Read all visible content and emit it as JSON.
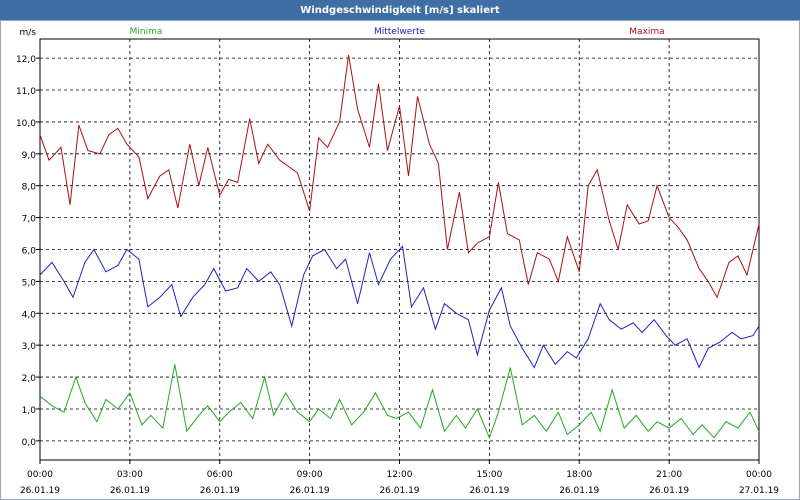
{
  "window": {
    "title": "Windgeschwindigkeit [m/s] skaliert"
  },
  "chart_data": {
    "type": "line",
    "title": "Windgeschwindigkeit [m/s] skaliert",
    "ylabel": "m/s",
    "ylim": [
      -0.6,
      12.6
    ],
    "xlim": [
      0,
      24
    ],
    "grid": true,
    "y_ticks": [
      "0,0",
      "1,0",
      "2,0",
      "3,0",
      "4,0",
      "5,0",
      "6,0",
      "7,0",
      "8,0",
      "9,0",
      "10,0",
      "11,0",
      "12,0"
    ],
    "x_ticks": [
      {
        "time": "00:00",
        "date": "26.01.19"
      },
      {
        "time": "03:00",
        "date": "26.01.19"
      },
      {
        "time": "06:00",
        "date": "26.01.19"
      },
      {
        "time": "09:00",
        "date": "26.01.19"
      },
      {
        "time": "12:00",
        "date": "26.01.19"
      },
      {
        "time": "15:00",
        "date": "26.01.19"
      },
      {
        "time": "18:00",
        "date": "26.01.19"
      },
      {
        "time": "21:00",
        "date": "26.01.19"
      },
      {
        "time": "00:00",
        "date": "27.01.19"
      }
    ],
    "series": [
      {
        "name": "Minima",
        "color": "#22aa22",
        "legend_pos": "left",
        "x": [
          0.0,
          0.4,
          0.8,
          1.2,
          1.5,
          1.9,
          2.2,
          2.6,
          3.0,
          3.4,
          3.7,
          4.1,
          4.5,
          4.9,
          5.3,
          5.6,
          6.0,
          6.3,
          6.7,
          7.1,
          7.5,
          7.8,
          8.2,
          8.6,
          9.0,
          9.3,
          9.7,
          10.0,
          10.4,
          10.8,
          11.2,
          11.6,
          11.9,
          12.3,
          12.7,
          13.1,
          13.5,
          13.9,
          14.2,
          14.6,
          15.0,
          15.3,
          15.7,
          16.1,
          16.5,
          16.9,
          17.3,
          17.6,
          18.0,
          18.4,
          18.7,
          19.1,
          19.5,
          19.9,
          20.3,
          20.6,
          21.0,
          21.4,
          21.8,
          22.1,
          22.5,
          22.9,
          23.3,
          23.7,
          24.0
        ],
        "y": [
          1.4,
          1.1,
          0.9,
          2.0,
          1.2,
          0.6,
          1.3,
          1.0,
          1.5,
          0.5,
          0.8,
          0.4,
          2.4,
          0.3,
          0.8,
          1.1,
          0.6,
          0.9,
          1.2,
          0.7,
          2.0,
          0.8,
          1.5,
          0.9,
          0.6,
          1.0,
          0.7,
          1.3,
          0.5,
          0.9,
          1.5,
          0.8,
          0.7,
          0.9,
          0.4,
          1.6,
          0.3,
          0.8,
          0.4,
          1.0,
          0.1,
          0.9,
          2.3,
          0.5,
          0.8,
          0.3,
          0.9,
          0.2,
          0.5,
          0.9,
          0.3,
          1.6,
          0.4,
          0.8,
          0.3,
          0.6,
          0.4,
          0.7,
          0.2,
          0.5,
          0.1,
          0.6,
          0.4,
          0.9,
          0.3
        ]
      },
      {
        "name": "Mittelwerte",
        "color": "#2222bb",
        "legend_pos": "center",
        "x": [
          0.0,
          0.4,
          0.8,
          1.1,
          1.5,
          1.8,
          2.2,
          2.6,
          2.9,
          3.3,
          3.6,
          4.0,
          4.4,
          4.7,
          5.1,
          5.5,
          5.8,
          6.2,
          6.6,
          6.9,
          7.3,
          7.7,
          8.0,
          8.4,
          8.8,
          9.1,
          9.5,
          9.9,
          10.2,
          10.6,
          11.0,
          11.3,
          11.7,
          12.1,
          12.4,
          12.8,
          13.2,
          13.5,
          13.9,
          14.3,
          14.6,
          15.0,
          15.4,
          15.7,
          16.1,
          16.5,
          16.8,
          17.2,
          17.6,
          17.9,
          18.3,
          18.7,
          19.0,
          19.4,
          19.8,
          20.1,
          20.5,
          20.9,
          21.2,
          21.6,
          22.0,
          22.3,
          22.7,
          23.1,
          23.4,
          23.8,
          24.0
        ],
        "y": [
          5.2,
          5.6,
          5.0,
          4.5,
          5.6,
          6.0,
          5.3,
          5.5,
          6.0,
          5.7,
          4.2,
          4.5,
          4.9,
          3.9,
          4.5,
          4.9,
          5.4,
          4.7,
          4.8,
          5.4,
          5.0,
          5.3,
          4.9,
          3.6,
          5.2,
          5.8,
          6.0,
          5.4,
          5.7,
          4.3,
          5.9,
          4.9,
          5.7,
          6.1,
          4.2,
          4.8,
          3.5,
          4.3,
          4.0,
          3.8,
          2.7,
          4.1,
          4.8,
          3.6,
          2.9,
          2.3,
          3.0,
          2.4,
          2.8,
          2.6,
          3.2,
          4.3,
          3.8,
          3.5,
          3.7,
          3.4,
          3.8,
          3.3,
          3.0,
          3.2,
          2.3,
          2.9,
          3.1,
          3.4,
          3.2,
          3.3,
          3.6
        ]
      },
      {
        "name": "Maxima",
        "color": "#aa1111",
        "legend_pos": "right",
        "x": [
          0.0,
          0.3,
          0.7,
          1.0,
          1.3,
          1.6,
          2.0,
          2.3,
          2.6,
          2.9,
          3.3,
          3.6,
          4.0,
          4.3,
          4.6,
          5.0,
          5.3,
          5.6,
          6.0,
          6.3,
          6.6,
          7.0,
          7.3,
          7.6,
          8.0,
          8.3,
          8.6,
          9.0,
          9.3,
          9.6,
          10.0,
          10.3,
          10.6,
          11.0,
          11.3,
          11.6,
          12.0,
          12.3,
          12.6,
          13.0,
          13.3,
          13.6,
          14.0,
          14.3,
          14.6,
          15.0,
          15.3,
          15.6,
          16.0,
          16.3,
          16.6,
          17.0,
          17.3,
          17.6,
          18.0,
          18.3,
          18.6,
          19.0,
          19.3,
          19.6,
          20.0,
          20.3,
          20.6,
          21.0,
          21.3,
          21.6,
          22.0,
          22.3,
          22.6,
          23.0,
          23.3,
          23.6,
          24.0
        ],
        "y": [
          9.6,
          8.8,
          9.2,
          7.4,
          9.9,
          9.1,
          9.0,
          9.6,
          9.8,
          9.3,
          8.9,
          7.6,
          8.3,
          8.5,
          7.3,
          9.3,
          8.0,
          9.2,
          7.7,
          8.2,
          8.1,
          10.1,
          8.7,
          9.3,
          8.8,
          8.6,
          8.4,
          7.2,
          9.5,
          9.2,
          10.0,
          12.1,
          10.4,
          9.2,
          11.2,
          9.1,
          10.5,
          8.3,
          10.8,
          9.3,
          8.7,
          6.0,
          7.8,
          5.9,
          6.2,
          6.4,
          8.1,
          6.5,
          6.3,
          4.9,
          5.9,
          5.7,
          5.0,
          6.4,
          5.3,
          8.0,
          8.5,
          6.9,
          6.0,
          7.4,
          6.8,
          6.9,
          8.0,
          7.0,
          6.7,
          6.3,
          5.4,
          5.0,
          4.5,
          5.6,
          5.8,
          5.2,
          6.8
        ]
      }
    ]
  }
}
